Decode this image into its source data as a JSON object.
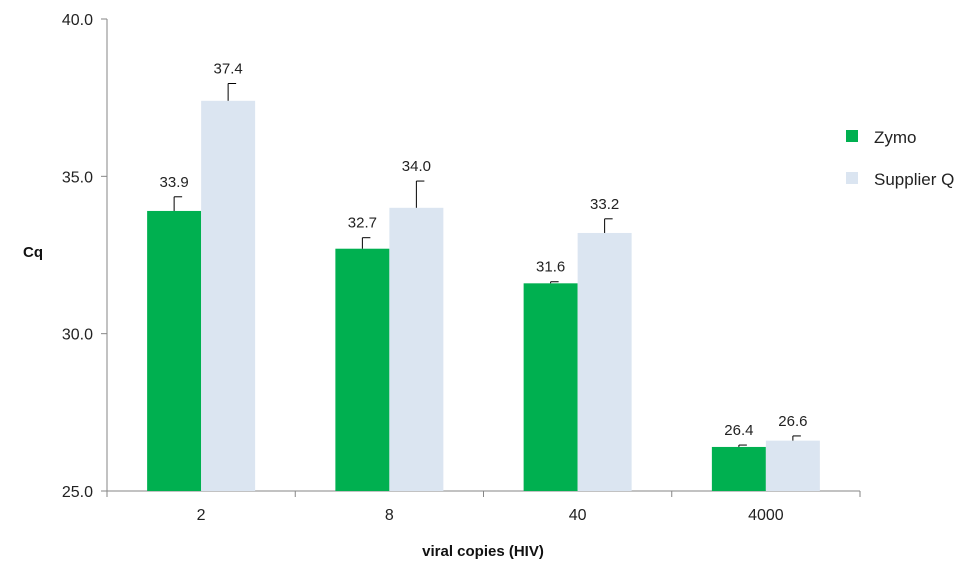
{
  "chart_data": {
    "type": "bar",
    "title": "",
    "xlabel": "viral copies (HIV)",
    "ylabel": "Cq",
    "ylim": [
      25.0,
      40.0
    ],
    "yticks": [
      "25.0",
      "30.0",
      "35.0",
      "40.0"
    ],
    "categories": [
      "2",
      "8",
      "40",
      "4000"
    ],
    "series": [
      {
        "name": "Zymo",
        "color": "#00B050",
        "values": [
          33.9,
          32.7,
          31.6,
          26.4
        ],
        "labels": [
          "33.9",
          "32.7",
          "31.6",
          "26.4"
        ],
        "error": [
          0.45,
          0.35,
          0.05,
          0.06
        ]
      },
      {
        "name": "Supplier Q",
        "color": "#DBE5F1",
        "values": [
          37.4,
          34.0,
          33.2,
          26.6
        ],
        "labels": [
          "37.4",
          "34.0",
          "33.2",
          "26.6"
        ],
        "error": [
          0.55,
          0.85,
          0.45,
          0.15
        ]
      }
    ],
    "legend": "right",
    "grid": false
  }
}
